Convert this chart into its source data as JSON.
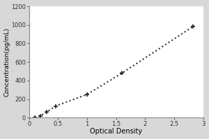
{
  "x_data": [
    0.1,
    0.2,
    0.3,
    0.46,
    1.0,
    1.6,
    2.82
  ],
  "y_data": [
    0,
    20,
    60,
    125,
    250,
    480,
    980
  ],
  "xlabel": "Optical Density",
  "ylabel": "Concentration(pg/mL)",
  "xlim": [
    0,
    3
  ],
  "ylim": [
    0,
    1200
  ],
  "xticks": [
    0,
    0.5,
    1,
    1.5,
    2,
    2.5,
    3
  ],
  "yticks": [
    0,
    200,
    400,
    600,
    800,
    1000,
    1200
  ],
  "xtick_labels": [
    "0",
    "0.5",
    "1",
    "1.5",
    "2",
    "2.5",
    "3"
  ],
  "ytick_labels": [
    "0",
    "200",
    "400",
    "600",
    "800",
    "1000",
    "1200"
  ],
  "xlabel_fontsize": 7,
  "ylabel_fontsize": 6.5,
  "tick_fontsize": 6,
  "line_color": "#333333",
  "marker_color": "#222222",
  "background_color": "#d8d8d8",
  "plot_bg_color": "#ffffff",
  "marker_style": "+",
  "marker_size": 5,
  "marker_linewidth": 1.2,
  "line_style": ":",
  "line_width": 1.5,
  "spine_color": "#888888",
  "spine_linewidth": 0.8
}
